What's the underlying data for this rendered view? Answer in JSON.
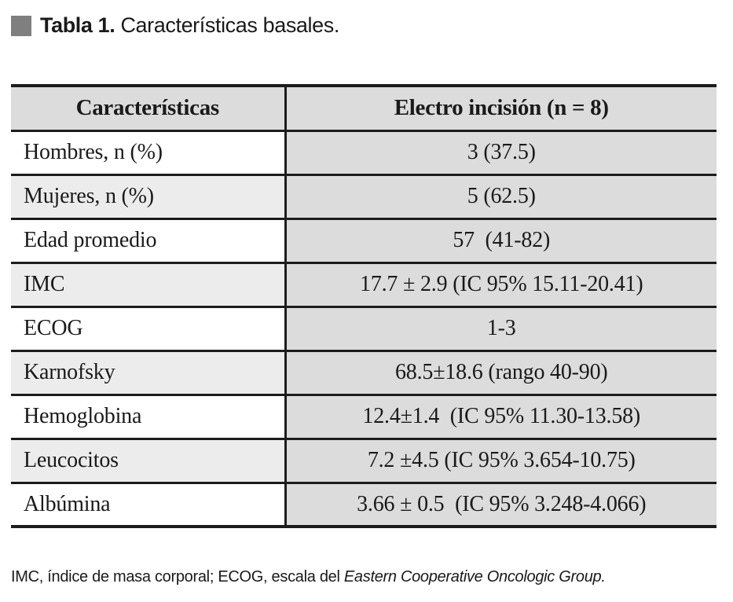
{
  "title": {
    "bold": "Tabla 1.",
    "rest": " Características basales."
  },
  "table": {
    "columns": [
      {
        "label": "Características"
      },
      {
        "label": "Electro incisión (n = 8)"
      }
    ],
    "rows": [
      {
        "name": "Hombres, n (%)",
        "value": "3 (37.5)"
      },
      {
        "name": "Mujeres, n (%)",
        "value": "5 (62.5)"
      },
      {
        "name": "Edad promedio",
        "value": "57  (41-82)"
      },
      {
        "name": "IMC",
        "value": "17.7 ± 2.9 (IC 95% 15.11-20.41)"
      },
      {
        "name": "ECOG",
        "value": "1-3"
      },
      {
        "name": "Karnofsky",
        "value": "68.5±18.6 (rango 40-90)"
      },
      {
        "name": "Hemoglobina",
        "value": "12.4±1.4  (IC 95% 11.30-13.58)"
      },
      {
        "name": "Leucocitos",
        "value": "7.2 ±4.5 (IC 95% 3.654-10.75)"
      },
      {
        "name": "Albúmina",
        "value": "3.66 ± 0.5  (IC 95% 3.248-4.066)"
      }
    ]
  },
  "footnote": {
    "regular": "IMC, índice de masa corporal; ECOG, escala del ",
    "italic": "Eastern Cooperative Oncologic Group."
  },
  "colors": {
    "border": "#1c1c1c",
    "header_bg": "#dcdcdc",
    "value_bg": "#dcdcdc",
    "alt_row_bg": "#ececec",
    "title_square": "#7f7f7f"
  }
}
